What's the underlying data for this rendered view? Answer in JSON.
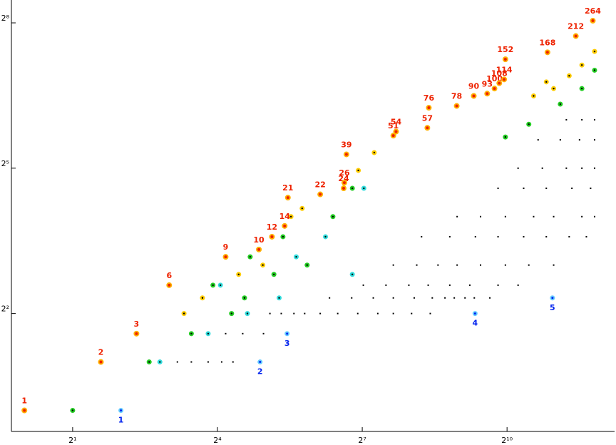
{
  "chart_data": {
    "type": "scatter",
    "log_x": 2,
    "log_y": 2,
    "xlim": [
      0.83,
      4700
    ],
    "ylim": [
      0.74,
      355
    ],
    "xticks": [
      {
        "value": 2,
        "label": "2¹"
      },
      {
        "value": 16,
        "label": "2⁴"
      },
      {
        "value": 128,
        "label": "2⁷"
      },
      {
        "value": 1024,
        "label": "2¹⁰"
      }
    ],
    "yticks": [
      {
        "value": 4,
        "label": "2²"
      },
      {
        "value": 32,
        "label": "2⁵"
      },
      {
        "value": 256,
        "label": "2⁸"
      }
    ],
    "series": [
      {
        "color": "#000000",
        "marker": "dot",
        "x": [
          9,
          11,
          14,
          17,
          20,
          18,
          23,
          31,
          34,
          40,
          48,
          56,
          70,
          90,
          120,
          160,
          200,
          260,
          340,
          80,
          110,
          150,
          200,
          270,
          350,
          420,
          480,
          560,
          640,
          800,
          130,
          180,
          250,
          330,
          450,
          600,
          900,
          1200,
          200,
          280,
          380,
          500,
          700,
          1000,
          1400,
          2000,
          300,
          450,
          650,
          900,
          1300,
          1800,
          2500,
          3200,
          500,
          700,
          1000,
          1500,
          2000,
          3000,
          3600,
          900,
          1300,
          1800,
          2600,
          3400,
          1200,
          1700,
          2400,
          3000,
          3600,
          1600,
          2200,
          2900,
          3600,
          2400,
          3000,
          3600
        ],
        "y": [
          2,
          2,
          2,
          2,
          2,
          3,
          3,
          3,
          4,
          4,
          4,
          4,
          4,
          4,
          4,
          4,
          4,
          4,
          4,
          5,
          5,
          5,
          5,
          5,
          5,
          5,
          5,
          5,
          5,
          5,
          6,
          6,
          6,
          6,
          6,
          6,
          6,
          6,
          8,
          8,
          8,
          8,
          8,
          8,
          8,
          8,
          12,
          12,
          12,
          12,
          12,
          12,
          12,
          12,
          16,
          16,
          16,
          16,
          16,
          16,
          16,
          24,
          24,
          24,
          24,
          24,
          32,
          32,
          32,
          32,
          32,
          48,
          48,
          48,
          48,
          64,
          64,
          64
        ]
      },
      {
        "color": "#22cc22",
        "marker": "ring",
        "x": [
          2,
          6,
          11,
          19.6,
          23.6,
          15,
          36,
          25.6,
          58,
          41,
          84,
          111,
          1000,
          1400,
          2200,
          3000,
          3600
        ],
        "y": [
          1,
          2,
          3,
          4,
          5,
          6,
          7,
          9,
          8,
          12,
          16,
          24,
          50,
          60,
          80,
          100,
          130
        ]
      },
      {
        "color": "#33dddd",
        "marker": "ring",
        "x": [
          7,
          14,
          24.6,
          16.7,
          38.8,
          49.6,
          75.5,
          111,
          131
        ],
        "y": [
          2,
          3,
          4,
          6,
          5,
          9,
          12,
          7,
          24
        ]
      },
      {
        "color": "#ffcc00",
        "marker": "ring",
        "x": [
          9.9,
          12.9,
          21.7,
          30.7,
          46,
          54,
          121,
          152,
          1500,
          1800,
          2000,
          2500,
          3000,
          3600
        ],
        "y": [
          4,
          5,
          7,
          8,
          16,
          18,
          31,
          40,
          90,
          110,
          100,
          120,
          140,
          170
        ]
      },
      {
        "color": "#ee2200",
        "marker": "red",
        "show_labels": true,
        "x": [
          1,
          3,
          5,
          8,
          18,
          29,
          35,
          42,
          44,
          70,
          98,
          99,
          102,
          200,
          208,
          326,
          333,
          497,
          635,
          770,
          855,
          916,
          982,
          1000,
          1830,
          2750,
          3510
        ],
        "y": [
          1,
          2,
          3,
          6,
          9,
          10,
          12,
          14,
          21,
          22,
          24,
          26,
          39,
          51,
          54,
          57,
          76,
          78,
          90,
          93,
          100,
          108,
          114,
          152,
          168,
          212,
          264
        ]
      },
      {
        "color": "#0022ee",
        "marker": "blue",
        "show_labels": true,
        "x": [
          4,
          29.5,
          43.5,
          647,
          1966
        ],
        "y": [
          1,
          2,
          3,
          4,
          5
        ]
      }
    ]
  }
}
